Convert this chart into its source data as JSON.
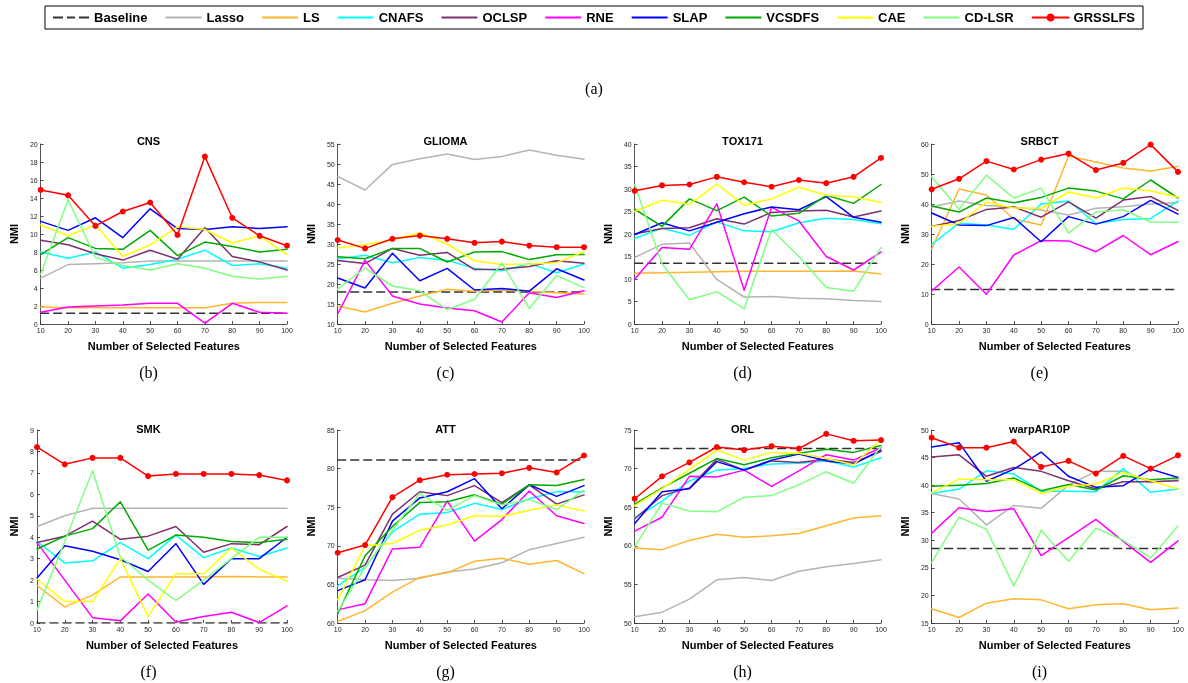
{
  "chart_data": [
    {
      "type": "line",
      "title": "CNS",
      "xlabel": "Number of Selected Features",
      "ylabel": "NMI",
      "annotations": [
        "(a)",
        "(b)"
      ],
      "legend": "top",
      "marker": "none",
      "grid": false,
      "x": [
        10,
        20,
        30,
        40,
        50,
        60,
        70,
        80,
        90,
        100
      ],
      "xlim": [
        10,
        100
      ],
      "xticks": [
        10,
        20,
        30,
        40,
        50,
        60,
        70,
        80,
        90,
        100
      ],
      "ylim": [
        0,
        20
      ],
      "yticks": [
        0,
        2,
        4,
        6,
        8,
        10,
        12,
        14,
        16,
        18,
        20
      ],
      "series": [
        {
          "name": "Baseline",
          "color": "#333333",
          "line_style": "dashed",
          "values": [
            1.2,
            1.2,
            1.2,
            1.2,
            1.2,
            1.2,
            1.2,
            1.2,
            1.2,
            1.2
          ]
        },
        {
          "name": "Lasso",
          "color": "#b4b4b4",
          "values": [
            5.1,
            6.6,
            6.7,
            6.8,
            7.0,
            7.0,
            7.0,
            7.0,
            7.0,
            7.0
          ]
        },
        {
          "name": "LS",
          "color": "#ffb52e",
          "values": [
            1.9,
            1.8,
            1.8,
            1.8,
            1.8,
            1.8,
            1.8,
            2.3,
            2.4,
            2.4
          ]
        },
        {
          "name": "CNAFS",
          "color": "#00ffff",
          "values": [
            8.0,
            7.3,
            8.0,
            6.2,
            6.6,
            7.2,
            8.2,
            6.5,
            6.7,
            6.2
          ]
        },
        {
          "name": "OCLSP",
          "color": "#7e2f6e",
          "values": [
            9.3,
            8.8,
            7.8,
            7.1,
            8.2,
            7.2,
            10.7,
            7.5,
            6.9,
            6.0
          ]
        },
        {
          "name": "RNE",
          "color": "#ff00ff",
          "values": [
            1.3,
            1.9,
            2.0,
            2.1,
            2.3,
            2.3,
            0.1,
            2.3,
            1.3,
            1.2
          ]
        },
        {
          "name": "SLAP",
          "color": "#0000ff",
          "values": [
            11.4,
            10.4,
            11.8,
            9.6,
            12.8,
            10.6,
            10.5,
            10.8,
            10.6,
            10.8
          ]
        },
        {
          "name": "VCSDFS",
          "color": "#00aa00",
          "values": [
            7.7,
            9.6,
            8.4,
            8.3,
            10.4,
            7.6,
            9.1,
            8.6,
            8.0,
            8.3
          ]
        },
        {
          "name": "CAE",
          "color": "#ffff00",
          "values": [
            11.0,
            9.8,
            11.0,
            7.5,
            8.8,
            10.8,
            10.5,
            9.0,
            9.8,
            7.7
          ]
        },
        {
          "name": "CD-LSR",
          "color": "#80ff80",
          "values": [
            5.5,
            13.8,
            7.4,
            6.5,
            6.0,
            6.7,
            6.2,
            5.3,
            5.0,
            5.3
          ]
        },
        {
          "name": "GRSSLFS",
          "color": "#ff0000",
          "marker": "circle",
          "values": [
            14.9,
            14.3,
            10.9,
            12.5,
            13.5,
            9.9,
            18.6,
            11.8,
            9.8,
            8.7
          ]
        }
      ]
    },
    {
      "type": "line",
      "title": "GLIOMA",
      "xlabel": "Number of Selected Features",
      "ylabel": "NMI",
      "annotations": [
        "(c)"
      ],
      "marker": "none",
      "grid": false,
      "x": [
        10,
        20,
        30,
        40,
        50,
        60,
        70,
        80,
        90,
        100
      ],
      "xlim": [
        10,
        100
      ],
      "xticks": [
        10,
        20,
        30,
        40,
        50,
        60,
        70,
        80,
        90,
        100
      ],
      "ylim": [
        10,
        55
      ],
      "yticks": [
        10,
        15,
        20,
        25,
        30,
        35,
        40,
        45,
        50,
        55
      ],
      "series": [
        {
          "name": "Baseline",
          "color": "#333333",
          "line_style": "dashed",
          "values": [
            18.0,
            18.0,
            18.0,
            18.0,
            18.0,
            18.0,
            18.0,
            18.0,
            18.0,
            18.0
          ]
        },
        {
          "name": "Lasso",
          "color": "#b4b4b4",
          "values": [
            46.9,
            43.5,
            49.9,
            51.3,
            52.5,
            51.1,
            51.9,
            53.5,
            52.2,
            51.2
          ]
        },
        {
          "name": "LS",
          "color": "#ffb52e",
          "values": [
            14.5,
            13.0,
            15.2,
            17.0,
            18.7,
            18.2,
            18.5,
            18.2,
            17.8,
            17.5
          ]
        },
        {
          "name": "CNAFS",
          "color": "#00ffff",
          "values": [
            26.3,
            27.2,
            25.3,
            26.6,
            25.9,
            23.9,
            23.3,
            25.1,
            22.8,
            25.0
          ]
        },
        {
          "name": "OCLSP",
          "color": "#7e2f6e",
          "values": [
            25.9,
            25.1,
            28.9,
            27.2,
            27.9,
            23.6,
            23.7,
            24.4,
            25.8,
            25.2
          ]
        },
        {
          "name": "RNE",
          "color": "#ff00ff",
          "values": [
            12.5,
            25.9,
            17.0,
            15.0,
            14.0,
            13.3,
            10.5,
            17.8,
            16.6,
            18.3
          ]
        },
        {
          "name": "SLAP",
          "color": "#0000ff",
          "values": [
            21.5,
            19.0,
            27.7,
            20.8,
            23.9,
            18.5,
            18.9,
            18.2,
            23.8,
            21.0
          ]
        },
        {
          "name": "VCSDFS",
          "color": "#00aa00",
          "values": [
            26.8,
            26.3,
            28.9,
            28.9,
            25.5,
            28.0,
            28.1,
            26.1,
            27.3,
            27.4
          ]
        },
        {
          "name": "CAE",
          "color": "#ffff00",
          "values": [
            29.0,
            29.9,
            31.0,
            32.8,
            30.0,
            25.8,
            24.9,
            25.0,
            25.3,
            28.1
          ]
        },
        {
          "name": "CD-LSR",
          "color": "#80ff80",
          "values": [
            18.7,
            24.0,
            19.5,
            18.3,
            13.6,
            16.2,
            25.2,
            13.9,
            22.1,
            19.1
          ]
        },
        {
          "name": "GRSSLFS",
          "color": "#ff0000",
          "marker": "circle",
          "values": [
            31.0,
            28.9,
            31.3,
            32.1,
            31.3,
            30.3,
            30.6,
            29.6,
            29.2,
            29.2
          ]
        }
      ]
    },
    {
      "type": "line",
      "title": "TOX171",
      "xlabel": "Number of Selected Features",
      "ylabel": "NMI",
      "annotations": [
        "(d)"
      ],
      "marker": "none",
      "grid": false,
      "x": [
        10,
        20,
        30,
        40,
        50,
        60,
        70,
        80,
        90,
        100
      ],
      "xlim": [
        10,
        100
      ],
      "xticks": [
        10,
        20,
        30,
        40,
        50,
        60,
        70,
        80,
        90,
        100
      ],
      "ylim": [
        0,
        40
      ],
      "yticks": [
        0,
        5,
        10,
        15,
        20,
        25,
        30,
        35,
        40
      ],
      "series": [
        {
          "name": "Baseline",
          "color": "#333333",
          "line_style": "dashed",
          "values": [
            13.5,
            13.5,
            13.5,
            13.5,
            13.5,
            13.5,
            13.5,
            13.5,
            13.5,
            13.5
          ]
        },
        {
          "name": "Lasso",
          "color": "#b4b4b4",
          "values": [
            14.8,
            17.7,
            18.0,
            9.9,
            6.0,
            6.1,
            5.7,
            5.6,
            5.2,
            5.0
          ]
        },
        {
          "name": "LS",
          "color": "#ffb52e",
          "values": [
            11.3,
            11.4,
            11.5,
            11.6,
            11.7,
            11.7,
            11.7,
            11.7,
            11.8,
            11.1
          ]
        },
        {
          "name": "CNAFS",
          "color": "#00ffff",
          "values": [
            19.0,
            21.3,
            19.7,
            22.7,
            20.7,
            20.5,
            22.5,
            23.5,
            23.2,
            22.3
          ]
        },
        {
          "name": "OCLSP",
          "color": "#7e2f6e",
          "values": [
            20.0,
            21.2,
            21.4,
            23.4,
            22.2,
            24.8,
            25.1,
            25.3,
            23.8,
            25.1
          ]
        },
        {
          "name": "RNE",
          "color": "#ff00ff",
          "values": [
            10.0,
            17.0,
            16.6,
            26.7,
            7.5,
            25.9,
            22.9,
            15.0,
            12.0,
            16.0
          ]
        },
        {
          "name": "SLAP",
          "color": "#0000ff",
          "values": [
            19.9,
            22.5,
            20.7,
            22.6,
            24.5,
            26.0,
            25.4,
            28.3,
            23.7,
            22.6
          ]
        },
        {
          "name": "VCSDFS",
          "color": "#00aa00",
          "values": [
            25.5,
            21.7,
            27.8,
            25.2,
            28.2,
            24.0,
            24.6,
            28.6,
            26.8,
            31.0
          ]
        },
        {
          "name": "CAE",
          "color": "#ffff00",
          "values": [
            25.0,
            27.5,
            26.6,
            31.1,
            26.4,
            27.8,
            30.4,
            28.6,
            28.3,
            27.0
          ]
        },
        {
          "name": "CD-LSR",
          "color": "#80ff80",
          "values": [
            31.0,
            13.4,
            5.4,
            7.2,
            3.4,
            21.0,
            15.0,
            8.1,
            7.3,
            17.0
          ]
        },
        {
          "name": "GRSSLFS",
          "color": "#ff0000",
          "marker": "circle",
          "values": [
            29.6,
            30.8,
            31.0,
            32.7,
            31.5,
            30.5,
            32.0,
            31.3,
            32.7,
            36.9
          ]
        }
      ]
    },
    {
      "type": "line",
      "title": "SRBCT",
      "xlabel": "Number of Selected Features",
      "ylabel": "NMI",
      "annotations": [
        "(e)"
      ],
      "marker": "none",
      "grid": false,
      "x": [
        10,
        20,
        30,
        40,
        50,
        60,
        70,
        80,
        90,
        100
      ],
      "xlim": [
        10,
        100
      ],
      "xticks": [
        10,
        20,
        30,
        40,
        50,
        60,
        70,
        80,
        90,
        100
      ],
      "ylim": [
        0,
        60
      ],
      "yticks": [
        0,
        10,
        20,
        30,
        40,
        50,
        60
      ],
      "series": [
        {
          "name": "Baseline",
          "color": "#333333",
          "line_style": "dashed",
          "values": [
            11.5,
            11.5,
            11.5,
            11.5,
            11.5,
            11.5,
            11.5,
            11.5,
            11.5,
            11.5
          ]
        },
        {
          "name": "Lasso",
          "color": "#b4b4b4",
          "values": [
            39.0,
            41.0,
            39.5,
            39.0,
            38.0,
            36.3,
            38.6,
            39.1,
            40.0,
            40.5
          ]
        },
        {
          "name": "LS",
          "color": "#ffb52e",
          "values": [
            25.0,
            45.0,
            43.0,
            35.0,
            33.0,
            56.0,
            54.0,
            52.0,
            51.0,
            52.5
          ]
        },
        {
          "name": "CNAFS",
          "color": "#00ffff",
          "values": [
            26.5,
            33.6,
            33.0,
            31.6,
            40.0,
            41.0,
            33.5,
            34.8,
            35.2,
            41.0
          ]
        },
        {
          "name": "OCLSP",
          "color": "#7e2f6e",
          "values": [
            32.5,
            34.5,
            38.2,
            39.0,
            35.6,
            40.7,
            35.3,
            41.3,
            42.5,
            37.9
          ]
        },
        {
          "name": "RNE",
          "color": "#ff00ff",
          "values": [
            11.0,
            19.0,
            9.9,
            23.0,
            27.8,
            27.7,
            24.1,
            29.5,
            23.1,
            27.5
          ]
        },
        {
          "name": "SLAP",
          "color": "#0000ff",
          "values": [
            37.0,
            33.0,
            32.8,
            35.5,
            27.4,
            35.8,
            33.3,
            35.8,
            41.2,
            36.6
          ]
        },
        {
          "name": "VCSDFS",
          "color": "#00aa00",
          "values": [
            39.3,
            37.3,
            42.0,
            40.4,
            42.2,
            45.3,
            44.3,
            41.7,
            48.0,
            42.0
          ]
        },
        {
          "name": "CAE",
          "color": "#ffff00",
          "values": [
            32.5,
            33.5,
            40.6,
            38.7,
            38.5,
            44.0,
            42.0,
            45.3,
            44.3,
            42.3
          ]
        },
        {
          "name": "CD-LSR",
          "color": "#80ff80",
          "values": [
            49.0,
            38.3,
            49.6,
            42.0,
            45.3,
            30.3,
            37.3,
            38.1,
            34.0,
            33.9
          ]
        },
        {
          "name": "GRSSLFS",
          "color": "#ff0000",
          "marker": "circle",
          "values": [
            44.9,
            48.4,
            54.3,
            51.5,
            54.8,
            56.8,
            51.3,
            53.7,
            59.8,
            50.7
          ]
        }
      ]
    },
    {
      "type": "line",
      "title": "SMK",
      "xlabel": "Number of Selected Features",
      "ylabel": "NMI",
      "annotations": [
        "(f)"
      ],
      "marker": "none",
      "grid": false,
      "x": [
        10,
        20,
        30,
        40,
        50,
        60,
        70,
        80,
        90,
        100
      ],
      "xlim": [
        10,
        100
      ],
      "xticks": [
        10,
        20,
        30,
        40,
        50,
        60,
        70,
        80,
        90,
        100
      ],
      "ylim": [
        0,
        9
      ],
      "yticks": [
        0,
        1,
        2,
        3,
        4,
        5,
        6,
        7,
        8,
        9
      ],
      "series": [
        {
          "name": "Baseline",
          "color": "#333333",
          "line_style": "dashed",
          "values": [
            0,
            0,
            0,
            0,
            0,
            0,
            0,
            0,
            0,
            0
          ]
        },
        {
          "name": "Lasso",
          "color": "#b4b4b4",
          "values": [
            4.5,
            5.0,
            5.35,
            5.35,
            5.35,
            5.35,
            5.35,
            5.35,
            5.35,
            5.35
          ]
        },
        {
          "name": "LS",
          "color": "#ffb52e",
          "values": [
            1.75,
            0.75,
            1.3,
            2.15,
            2.15,
            2.15,
            2.15,
            2.17,
            2.15,
            2.15
          ]
        },
        {
          "name": "CNAFS",
          "color": "#00ffff",
          "values": [
            3.8,
            2.8,
            2.9,
            3.75,
            3.0,
            4.1,
            3.05,
            3.5,
            3.1,
            3.5
          ]
        },
        {
          "name": "OCLSP",
          "color": "#7e2f6e",
          "values": [
            3.75,
            4.05,
            4.75,
            3.9,
            4.05,
            4.5,
            3.3,
            3.7,
            3.65,
            4.5
          ]
        },
        {
          "name": "RNE",
          "color": "#ff00ff",
          "values": [
            3.75,
            2.0,
            0.25,
            0.1,
            1.35,
            0.05,
            0.3,
            0.5,
            0.02,
            0.8
          ]
        },
        {
          "name": "SLAP",
          "color": "#0000ff",
          "values": [
            2.1,
            3.6,
            3.35,
            2.95,
            2.4,
            3.7,
            1.8,
            3.0,
            3.0,
            4.0
          ]
        },
        {
          "name": "VCSDFS",
          "color": "#00aa00",
          "values": [
            3.45,
            4.05,
            4.4,
            5.65,
            3.4,
            4.1,
            4.0,
            3.8,
            3.75,
            3.9
          ]
        },
        {
          "name": "CAE",
          "color": "#ffff00",
          "values": [
            2.05,
            1.0,
            1.0,
            3.0,
            0.3,
            2.3,
            2.3,
            3.5,
            2.5,
            1.95
          ]
        },
        {
          "name": "CD-LSR",
          "color": "#80ff80",
          "values": [
            0.6,
            3.8,
            7.1,
            3.1,
            2.0,
            1.05,
            2.0,
            3.0,
            4.0,
            4.0
          ]
        },
        {
          "name": "GRSSLFS",
          "color": "#ff0000",
          "marker": "circle",
          "values": [
            8.2,
            7.4,
            7.7,
            7.7,
            6.85,
            6.95,
            6.95,
            6.95,
            6.9,
            6.65
          ]
        }
      ]
    },
    {
      "type": "line",
      "title": "ATT",
      "xlabel": "Number of Selected Features",
      "ylabel": "NMI",
      "annotations": [
        "(g)"
      ],
      "marker": "none",
      "grid": false,
      "x": [
        10,
        20,
        30,
        40,
        50,
        60,
        70,
        80,
        90,
        100
      ],
      "xlim": [
        10,
        100
      ],
      "xticks": [
        10,
        20,
        30,
        40,
        50,
        60,
        70,
        80,
        90,
        100
      ],
      "ylim": [
        60,
        85
      ],
      "yticks": [
        60,
        65,
        70,
        75,
        80,
        85
      ],
      "series": [
        {
          "name": "Baseline",
          "color": "#333333",
          "line_style": "dashed",
          "values": [
            81.1,
            81.1,
            81.1,
            81.1,
            81.1,
            81.1,
            81.1,
            81.1,
            81.1,
            81.1
          ]
        },
        {
          "name": "Lasso",
          "color": "#b4b4b4",
          "values": [
            65.8,
            65.6,
            65.5,
            65.8,
            66.6,
            67.0,
            67.8,
            69.5,
            70.3,
            71.1
          ]
        },
        {
          "name": "LS",
          "color": "#ffb52e",
          "values": [
            60.2,
            61.6,
            64.0,
            65.9,
            66.5,
            68.0,
            68.4,
            67.6,
            68.1,
            66.4
          ]
        },
        {
          "name": "CNAFS",
          "color": "#00ffff",
          "values": [
            64.8,
            67.2,
            71.8,
            74.1,
            74.3,
            75.5,
            74.7,
            76.1,
            77.0,
            77.0
          ]
        },
        {
          "name": "OCLSP",
          "color": "#7e2f6e",
          "values": [
            65.9,
            67.5,
            74.1,
            77.0,
            76.5,
            77.8,
            75.6,
            77.9,
            75.4,
            76.6
          ]
        },
        {
          "name": "RNE",
          "color": "#ff00ff",
          "values": [
            61.7,
            62.5,
            69.6,
            69.8,
            75.8,
            70.6,
            73.4,
            77.1,
            73.9,
            72.9
          ]
        },
        {
          "name": "SLAP",
          "color": "#0000ff",
          "values": [
            64.2,
            65.6,
            73.2,
            76.2,
            77.0,
            78.7,
            74.8,
            77.9,
            76.4,
            77.8
          ]
        },
        {
          "name": "VCSDFS",
          "color": "#00aa00",
          "values": [
            61.2,
            68.7,
            72.5,
            75.6,
            75.7,
            76.6,
            75.4,
            77.9,
            77.8,
            78.6
          ]
        },
        {
          "name": "CAE",
          "color": "#ffff00",
          "values": [
            63.0,
            70.0,
            70.3,
            72.0,
            72.7,
            73.9,
            73.8,
            74.6,
            75.3,
            74.5
          ]
        },
        {
          "name": "CD-LSR",
          "color": "#80ff80",
          "values": [
            61.5,
            67.2,
            72.0,
            76.8,
            74.6,
            76.5,
            75.3,
            76.0,
            74.7,
            77.2
          ]
        },
        {
          "name": "GRSSLFS",
          "color": "#ff0000",
          "marker": "circle",
          "values": [
            69.1,
            70.1,
            76.3,
            78.5,
            79.2,
            79.3,
            79.4,
            80.1,
            79.5,
            81.7
          ]
        }
      ]
    },
    {
      "type": "line",
      "title": "ORL",
      "xlabel": "Number of Selected Features",
      "ylabel": "NMI",
      "annotations": [
        "(h)"
      ],
      "marker": "none",
      "grid": false,
      "x": [
        10,
        20,
        30,
        40,
        50,
        60,
        70,
        80,
        90,
        100
      ],
      "xlim": [
        10,
        100
      ],
      "xticks": [
        10,
        20,
        30,
        40,
        50,
        60,
        70,
        80,
        90,
        100
      ],
      "ylim": [
        50,
        75
      ],
      "yticks": [
        50,
        55,
        60,
        65,
        70,
        75
      ],
      "series": [
        {
          "name": "Baseline",
          "color": "#333333",
          "line_style": "dashed",
          "values": [
            72.6,
            72.6,
            72.6,
            72.6,
            72.6,
            72.6,
            72.6,
            72.6,
            72.6,
            72.6
          ]
        },
        {
          "name": "Lasso",
          "color": "#b4b4b4",
          "values": [
            50.8,
            51.4,
            53.1,
            55.6,
            55.9,
            55.5,
            56.7,
            57.3,
            57.7,
            58.2
          ]
        },
        {
          "name": "LS",
          "color": "#ffb52e",
          "values": [
            59.7,
            59.5,
            60.7,
            61.5,
            61.1,
            61.3,
            61.6,
            62.6,
            63.6,
            63.9
          ]
        },
        {
          "name": "CNAFS",
          "color": "#00ffff",
          "values": [
            63.6,
            65.8,
            68.4,
            69.8,
            70.0,
            70.6,
            70.7,
            71.0,
            70.2,
            71.4
          ]
        },
        {
          "name": "OCLSP",
          "color": "#7e2f6e",
          "values": [
            63.5,
            66.5,
            67.5,
            71.2,
            69.8,
            71.0,
            70.8,
            71.2,
            70.8,
            72.2
          ]
        },
        {
          "name": "RNE",
          "color": "#ff00ff",
          "values": [
            61.9,
            63.7,
            69.0,
            68.9,
            69.8,
            67.7,
            69.7,
            71.8,
            71.1,
            72.7
          ]
        },
        {
          "name": "SLAP",
          "color": "#0000ff",
          "values": [
            62.9,
            67.0,
            67.4,
            70.9,
            69.8,
            71.1,
            71.9,
            71.0,
            70.6,
            72.4
          ]
        },
        {
          "name": "VCSDFS",
          "color": "#00aa00",
          "values": [
            65.4,
            67.5,
            69.4,
            71.3,
            70.5,
            71.4,
            72.0,
            72.5,
            72.1,
            73.0
          ]
        },
        {
          "name": "CAE",
          "color": "#ffff00",
          "values": [
            65.2,
            67.4,
            69.9,
            72.4,
            71.1,
            72.1,
            72.0,
            71.3,
            70.5,
            73.8
          ]
        },
        {
          "name": "CD-LSR",
          "color": "#80ff80",
          "values": [
            59.9,
            65.5,
            64.5,
            64.4,
            66.3,
            66.5,
            67.9,
            69.6,
            68.1,
            72.9
          ]
        },
        {
          "name": "GRSSLFS",
          "color": "#ff0000",
          "marker": "circle",
          "values": [
            66.1,
            69.0,
            70.8,
            72.8,
            72.4,
            72.9,
            72.6,
            74.5,
            73.6,
            73.7
          ]
        }
      ]
    },
    {
      "type": "line",
      "title": "warpAR10P",
      "xlabel": "Number of Selected Features",
      "ylabel": "NMI",
      "annotations": [
        "(i)"
      ],
      "marker": "none",
      "grid": false,
      "x": [
        10,
        20,
        30,
        40,
        50,
        60,
        70,
        80,
        90,
        100
      ],
      "xlim": [
        10,
        100
      ],
      "xticks": [
        10,
        20,
        30,
        40,
        50,
        60,
        70,
        80,
        90,
        100
      ],
      "ylim": [
        15,
        50
      ],
      "yticks": [
        15,
        20,
        25,
        30,
        35,
        40,
        45,
        50
      ],
      "series": [
        {
          "name": "Baseline",
          "color": "#333333",
          "line_style": "dashed",
          "values": [
            28.5,
            28.5,
            28.5,
            28.5,
            28.5,
            28.5,
            28.5,
            28.5,
            28.5,
            28.5
          ]
        },
        {
          "name": "Lasso",
          "color": "#b4b4b4",
          "values": [
            38.5,
            37.5,
            32.8,
            36.3,
            35.8,
            40.0,
            42.5,
            42.5,
            40.5,
            41.0
          ]
        },
        {
          "name": "LS",
          "color": "#ffb52e",
          "values": [
            17.6,
            16.0,
            18.6,
            19.4,
            19.2,
            17.6,
            18.3,
            18.5,
            17.4,
            17.7
          ]
        },
        {
          "name": "CNAFS",
          "color": "#00ffff",
          "values": [
            38.5,
            39.3,
            42.6,
            42.0,
            38.9,
            38.9,
            38.8,
            43.0,
            38.7,
            39.3
          ]
        },
        {
          "name": "OCLSP",
          "color": "#7e2f6e",
          "values": [
            45.1,
            45.5,
            41.6,
            43.2,
            42.5,
            40.8,
            39.3,
            40.6,
            40.6,
            40.8
          ]
        },
        {
          "name": "RNE",
          "color": "#ff00ff",
          "values": [
            31.3,
            35.9,
            35.2,
            35.7,
            27.2,
            30.5,
            33.8,
            29.8,
            26.0,
            29.9
          ]
        },
        {
          "name": "SLAP",
          "color": "#0000ff",
          "values": [
            46.9,
            47.7,
            40.7,
            42.9,
            46.0,
            41.6,
            39.6,
            39.9,
            42.9,
            41.4
          ]
        },
        {
          "name": "VCSDFS",
          "color": "#00aa00",
          "values": [
            39.8,
            40.0,
            40.3,
            41.3,
            39.0,
            40.1,
            39.1,
            41.7,
            41.0,
            41.3
          ]
        },
        {
          "name": "CAE",
          "color": "#ffff00",
          "values": [
            38.6,
            41.1,
            41.0,
            41.0,
            38.5,
            39.8,
            40.2,
            42.3,
            40.8,
            39.3
          ]
        },
        {
          "name": "CD-LSR",
          "color": "#80ff80",
          "values": [
            26.0,
            34.2,
            32.0,
            21.7,
            31.8,
            26.2,
            32.2,
            30.0,
            26.8,
            32.6
          ]
        },
        {
          "name": "GRSSLFS",
          "color": "#ff0000",
          "marker": "circle",
          "values": [
            48.6,
            46.8,
            46.8,
            47.9,
            43.3,
            44.4,
            42.1,
            45.3,
            43.0,
            45.4
          ]
        }
      ]
    }
  ]
}
